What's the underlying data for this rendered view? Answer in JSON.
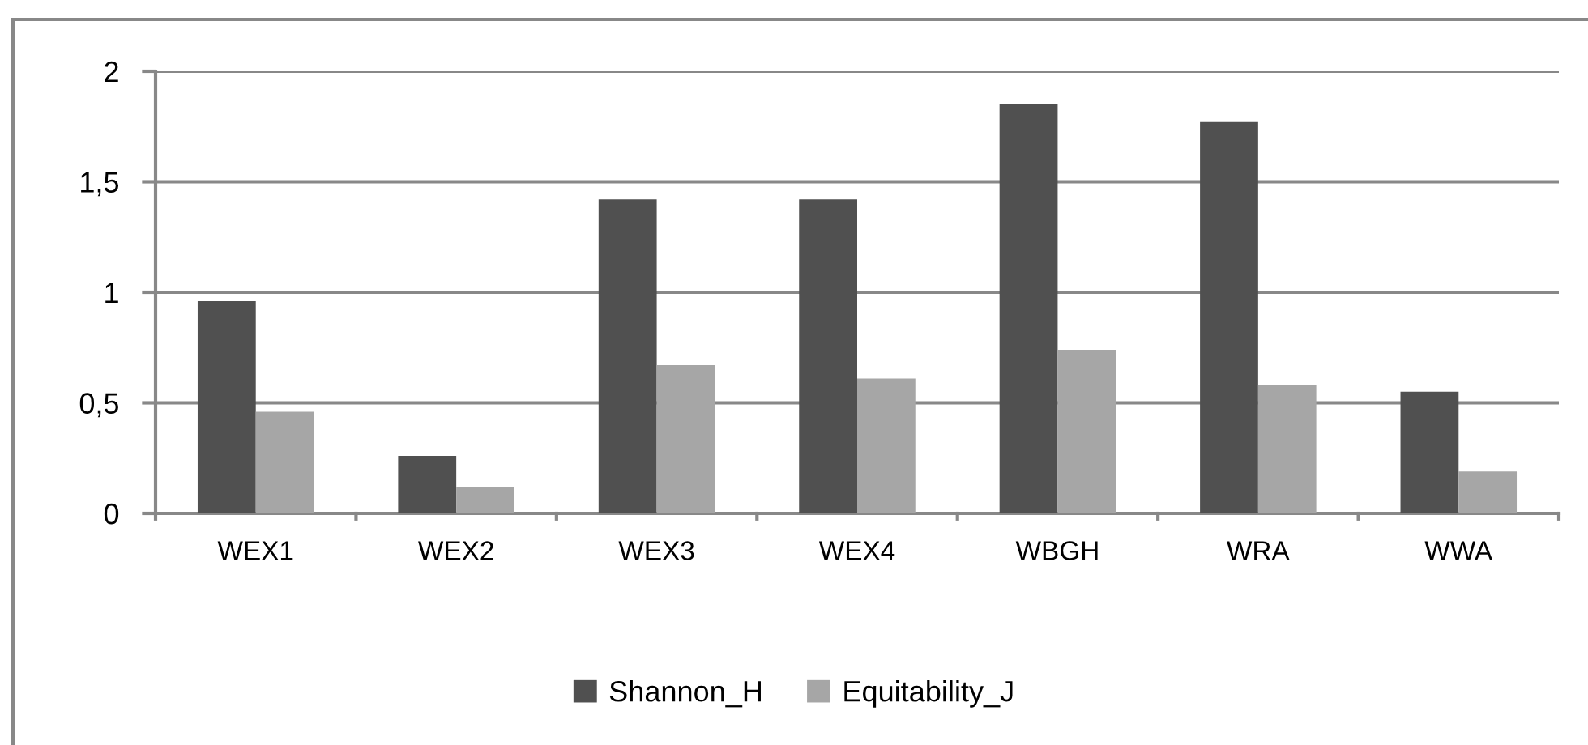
{
  "chart_data": {
    "type": "bar",
    "categories": [
      "WEX1",
      "WEX2",
      "WEX3",
      "WEX4",
      "WBGH",
      "WRA",
      "WWA"
    ],
    "series": [
      {
        "name": "Shannon_H",
        "color": "#505050",
        "values": [
          0.96,
          0.26,
          1.42,
          1.42,
          1.85,
          1.77,
          0.55
        ]
      },
      {
        "name": "Equitability_J",
        "color": "#a6a6a6",
        "values": [
          0.46,
          0.12,
          0.67,
          0.61,
          0.74,
          0.58,
          0.19
        ]
      }
    ],
    "ylim": [
      0,
      2
    ],
    "yticks": [
      0,
      {
        "value": 0.5,
        "label": "0,5"
      },
      1,
      {
        "value": 1.5,
        "label": "1,5"
      },
      2
    ],
    "grid": "y",
    "legend": "bottom"
  }
}
